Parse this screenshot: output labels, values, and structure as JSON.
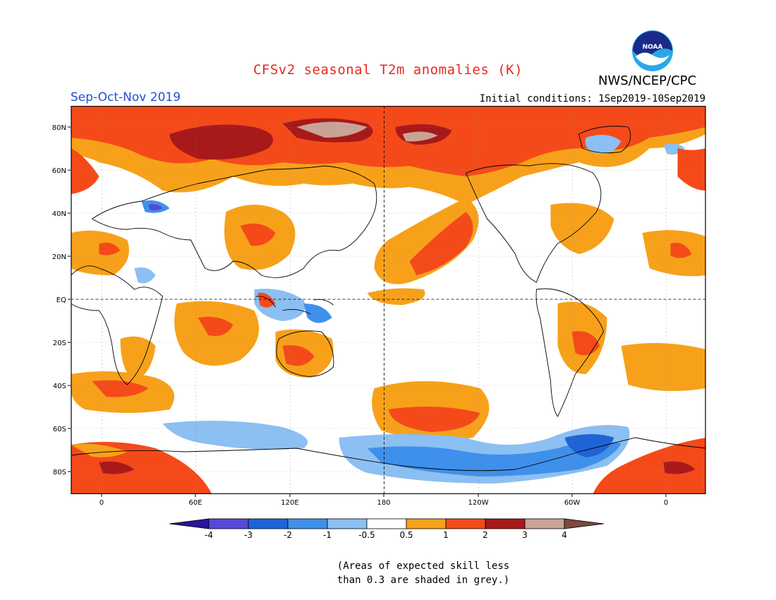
{
  "header": {
    "title": "CFSv2 seasonal T2m anomalies (K)",
    "agency": "NWS/NCEP/CPC",
    "logo_text": "NOAA",
    "season": "Sep-Oct-Nov 2019",
    "initial_conditions": "Initial conditions: 1Sep2019-10Sep2019"
  },
  "axes": {
    "lat_labels": [
      "80N",
      "60N",
      "40N",
      "20N",
      "EQ",
      "20S",
      "40S",
      "60S",
      "80S"
    ],
    "lon_labels": [
      "0",
      "60E",
      "120E",
      "180",
      "120W",
      "60W",
      "0"
    ]
  },
  "colorbar": {
    "labels": [
      "-4",
      "-3",
      "-2",
      "-1",
      "-0.5",
      "0.5",
      "1",
      "2",
      "3",
      "4"
    ],
    "colors": [
      "#2a1498",
      "#5848d8",
      "#1f64d6",
      "#3f90ea",
      "#8cbff2",
      "#ffffff",
      "#f7a11a",
      "#f44a1a",
      "#a8191a",
      "#c8a496",
      "#7a4a3a"
    ]
  },
  "note": {
    "line1": "(Areas of expected skill less",
    "line2": "than 0.3 are shaded in grey.)"
  },
  "colors": {
    "land_outline": "#000000",
    "dashed_grid": "#888888",
    "title_red": "#e8281e",
    "season_blue": "#1f4fd8"
  }
}
